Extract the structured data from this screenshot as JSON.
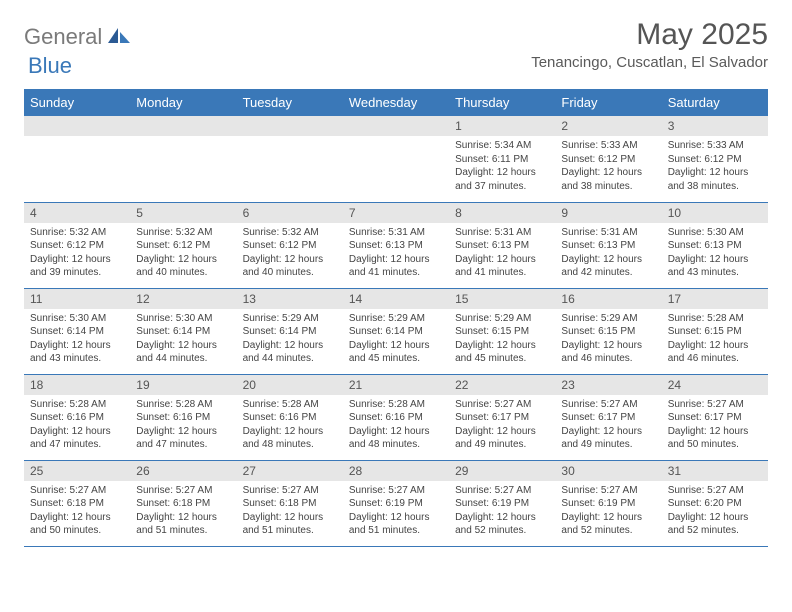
{
  "brand": {
    "part1": "General",
    "part2": "Blue"
  },
  "title": "May 2025",
  "location": "Tenancingo, Cuscatlan, El Salvador",
  "colors": {
    "header_bg": "#3a78b8",
    "header_text": "#ffffff",
    "daynum_bg": "#e6e6e6",
    "body_text": "#444444",
    "rule": "#3a78b8",
    "background": "#ffffff"
  },
  "typography": {
    "title_fontsize_pt": 23,
    "location_fontsize_pt": 11,
    "dayheader_fontsize_pt": 10,
    "cell_fontsize_pt": 7.5
  },
  "day_headers": [
    "Sunday",
    "Monday",
    "Tuesday",
    "Wednesday",
    "Thursday",
    "Friday",
    "Saturday"
  ],
  "weeks": [
    [
      null,
      null,
      null,
      null,
      {
        "n": "1",
        "sunrise": "Sunrise: 5:34 AM",
        "sunset": "Sunset: 6:11 PM",
        "day1": "Daylight: 12 hours",
        "day2": "and 37 minutes."
      },
      {
        "n": "2",
        "sunrise": "Sunrise: 5:33 AM",
        "sunset": "Sunset: 6:12 PM",
        "day1": "Daylight: 12 hours",
        "day2": "and 38 minutes."
      },
      {
        "n": "3",
        "sunrise": "Sunrise: 5:33 AM",
        "sunset": "Sunset: 6:12 PM",
        "day1": "Daylight: 12 hours",
        "day2": "and 38 minutes."
      }
    ],
    [
      {
        "n": "4",
        "sunrise": "Sunrise: 5:32 AM",
        "sunset": "Sunset: 6:12 PM",
        "day1": "Daylight: 12 hours",
        "day2": "and 39 minutes."
      },
      {
        "n": "5",
        "sunrise": "Sunrise: 5:32 AM",
        "sunset": "Sunset: 6:12 PM",
        "day1": "Daylight: 12 hours",
        "day2": "and 40 minutes."
      },
      {
        "n": "6",
        "sunrise": "Sunrise: 5:32 AM",
        "sunset": "Sunset: 6:12 PM",
        "day1": "Daylight: 12 hours",
        "day2": "and 40 minutes."
      },
      {
        "n": "7",
        "sunrise": "Sunrise: 5:31 AM",
        "sunset": "Sunset: 6:13 PM",
        "day1": "Daylight: 12 hours",
        "day2": "and 41 minutes."
      },
      {
        "n": "8",
        "sunrise": "Sunrise: 5:31 AM",
        "sunset": "Sunset: 6:13 PM",
        "day1": "Daylight: 12 hours",
        "day2": "and 41 minutes."
      },
      {
        "n": "9",
        "sunrise": "Sunrise: 5:31 AM",
        "sunset": "Sunset: 6:13 PM",
        "day1": "Daylight: 12 hours",
        "day2": "and 42 minutes."
      },
      {
        "n": "10",
        "sunrise": "Sunrise: 5:30 AM",
        "sunset": "Sunset: 6:13 PM",
        "day1": "Daylight: 12 hours",
        "day2": "and 43 minutes."
      }
    ],
    [
      {
        "n": "11",
        "sunrise": "Sunrise: 5:30 AM",
        "sunset": "Sunset: 6:14 PM",
        "day1": "Daylight: 12 hours",
        "day2": "and 43 minutes."
      },
      {
        "n": "12",
        "sunrise": "Sunrise: 5:30 AM",
        "sunset": "Sunset: 6:14 PM",
        "day1": "Daylight: 12 hours",
        "day2": "and 44 minutes."
      },
      {
        "n": "13",
        "sunrise": "Sunrise: 5:29 AM",
        "sunset": "Sunset: 6:14 PM",
        "day1": "Daylight: 12 hours",
        "day2": "and 44 minutes."
      },
      {
        "n": "14",
        "sunrise": "Sunrise: 5:29 AM",
        "sunset": "Sunset: 6:14 PM",
        "day1": "Daylight: 12 hours",
        "day2": "and 45 minutes."
      },
      {
        "n": "15",
        "sunrise": "Sunrise: 5:29 AM",
        "sunset": "Sunset: 6:15 PM",
        "day1": "Daylight: 12 hours",
        "day2": "and 45 minutes."
      },
      {
        "n": "16",
        "sunrise": "Sunrise: 5:29 AM",
        "sunset": "Sunset: 6:15 PM",
        "day1": "Daylight: 12 hours",
        "day2": "and 46 minutes."
      },
      {
        "n": "17",
        "sunrise": "Sunrise: 5:28 AM",
        "sunset": "Sunset: 6:15 PM",
        "day1": "Daylight: 12 hours",
        "day2": "and 46 minutes."
      }
    ],
    [
      {
        "n": "18",
        "sunrise": "Sunrise: 5:28 AM",
        "sunset": "Sunset: 6:16 PM",
        "day1": "Daylight: 12 hours",
        "day2": "and 47 minutes."
      },
      {
        "n": "19",
        "sunrise": "Sunrise: 5:28 AM",
        "sunset": "Sunset: 6:16 PM",
        "day1": "Daylight: 12 hours",
        "day2": "and 47 minutes."
      },
      {
        "n": "20",
        "sunrise": "Sunrise: 5:28 AM",
        "sunset": "Sunset: 6:16 PM",
        "day1": "Daylight: 12 hours",
        "day2": "and 48 minutes."
      },
      {
        "n": "21",
        "sunrise": "Sunrise: 5:28 AM",
        "sunset": "Sunset: 6:16 PM",
        "day1": "Daylight: 12 hours",
        "day2": "and 48 minutes."
      },
      {
        "n": "22",
        "sunrise": "Sunrise: 5:27 AM",
        "sunset": "Sunset: 6:17 PM",
        "day1": "Daylight: 12 hours",
        "day2": "and 49 minutes."
      },
      {
        "n": "23",
        "sunrise": "Sunrise: 5:27 AM",
        "sunset": "Sunset: 6:17 PM",
        "day1": "Daylight: 12 hours",
        "day2": "and 49 minutes."
      },
      {
        "n": "24",
        "sunrise": "Sunrise: 5:27 AM",
        "sunset": "Sunset: 6:17 PM",
        "day1": "Daylight: 12 hours",
        "day2": "and 50 minutes."
      }
    ],
    [
      {
        "n": "25",
        "sunrise": "Sunrise: 5:27 AM",
        "sunset": "Sunset: 6:18 PM",
        "day1": "Daylight: 12 hours",
        "day2": "and 50 minutes."
      },
      {
        "n": "26",
        "sunrise": "Sunrise: 5:27 AM",
        "sunset": "Sunset: 6:18 PM",
        "day1": "Daylight: 12 hours",
        "day2": "and 51 minutes."
      },
      {
        "n": "27",
        "sunrise": "Sunrise: 5:27 AM",
        "sunset": "Sunset: 6:18 PM",
        "day1": "Daylight: 12 hours",
        "day2": "and 51 minutes."
      },
      {
        "n": "28",
        "sunrise": "Sunrise: 5:27 AM",
        "sunset": "Sunset: 6:19 PM",
        "day1": "Daylight: 12 hours",
        "day2": "and 51 minutes."
      },
      {
        "n": "29",
        "sunrise": "Sunrise: 5:27 AM",
        "sunset": "Sunset: 6:19 PM",
        "day1": "Daylight: 12 hours",
        "day2": "and 52 minutes."
      },
      {
        "n": "30",
        "sunrise": "Sunrise: 5:27 AM",
        "sunset": "Sunset: 6:19 PM",
        "day1": "Daylight: 12 hours",
        "day2": "and 52 minutes."
      },
      {
        "n": "31",
        "sunrise": "Sunrise: 5:27 AM",
        "sunset": "Sunset: 6:20 PM",
        "day1": "Daylight: 12 hours",
        "day2": "and 52 minutes."
      }
    ]
  ]
}
